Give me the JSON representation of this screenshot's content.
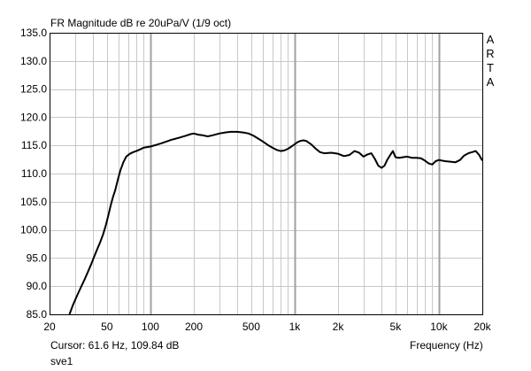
{
  "header": {
    "title": "FR Magnitude dB re 20uPa/V (1/9 oct)"
  },
  "brand": {
    "letters": [
      "A",
      "R",
      "T",
      "A"
    ]
  },
  "footer": {
    "cursor_readout": "Cursor: 61.6 Hz, 109.84 dB",
    "legend_label": "sve1"
  },
  "colors": {
    "background": "#ffffff",
    "grid": "#c8c8c8",
    "grid_major": "#a0a0a0",
    "trace": "#000000"
  },
  "chart_data": {
    "type": "line",
    "title": "FR Magnitude dB re 20uPa/V (1/9 oct)",
    "xlabel": "Frequency (Hz)",
    "ylabel": "",
    "x_scale": "log",
    "xlim": [
      20,
      20000
    ],
    "ylim": [
      85,
      135
    ],
    "grid": true,
    "x_ticks": [
      {
        "value": 20,
        "label": "20"
      },
      {
        "value": 50,
        "label": "50"
      },
      {
        "value": 100,
        "label": "100"
      },
      {
        "value": 200,
        "label": "200"
      },
      {
        "value": 500,
        "label": "500"
      },
      {
        "value": 1000,
        "label": "1k"
      },
      {
        "value": 2000,
        "label": "2k"
      },
      {
        "value": 5000,
        "label": "5k"
      },
      {
        "value": 10000,
        "label": "10k"
      },
      {
        "value": 20000,
        "label": "20k"
      }
    ],
    "y_ticks": [
      {
        "value": 135,
        "label": "135.0"
      },
      {
        "value": 130,
        "label": "130.0"
      },
      {
        "value": 125,
        "label": "125.0"
      },
      {
        "value": 120,
        "label": "120.0"
      },
      {
        "value": 115,
        "label": "115.0"
      },
      {
        "value": 110,
        "label": "110.0"
      },
      {
        "value": 105,
        "label": "105.0"
      },
      {
        "value": 100,
        "label": "100.0"
      },
      {
        "value": 95,
        "label": "95.0"
      },
      {
        "value": 90,
        "label": "90.0"
      },
      {
        "value": 85,
        "label": "85.0"
      }
    ],
    "series": [
      {
        "color": "#000000",
        "x": [
          27.5,
          29,
          31,
          33,
          35,
          37,
          39,
          41,
          43,
          45,
          47,
          49,
          51,
          53,
          55,
          57,
          60,
          62,
          65,
          68,
          72,
          76,
          80,
          85,
          90,
          95,
          100,
          110,
          120,
          130,
          140,
          150,
          160,
          175,
          190,
          200,
          215,
          230,
          250,
          270,
          300,
          330,
          360,
          400,
          440,
          480,
          520,
          560,
          600,
          650,
          700,
          750,
          800,
          850,
          900,
          950,
          1000,
          1050,
          1100,
          1150,
          1200,
          1300,
          1400,
          1500,
          1600,
          1800,
          2000,
          2200,
          2400,
          2600,
          2800,
          3000,
          3200,
          3400,
          3600,
          3800,
          4000,
          4200,
          4400,
          4600,
          4800,
          5000,
          5300,
          5600,
          6000,
          6500,
          7000,
          7500,
          8000,
          8500,
          9000,
          9500,
          10000,
          11000,
          12000,
          13000,
          14000,
          15000,
          16000,
          17000,
          18000,
          19000,
          20000
        ],
        "y": [
          85.0,
          86.6,
          88.3,
          89.8,
          91.2,
          92.6,
          94.0,
          95.4,
          96.7,
          97.9,
          99.2,
          100.7,
          102.5,
          104.3,
          105.8,
          107.0,
          109.3,
          110.6,
          112.0,
          113.0,
          113.5,
          113.8,
          114.0,
          114.3,
          114.6,
          114.7,
          114.8,
          115.1,
          115.4,
          115.7,
          116.0,
          116.2,
          116.4,
          116.7,
          117.0,
          117.1,
          116.9,
          116.8,
          116.6,
          116.8,
          117.1,
          117.3,
          117.4,
          117.4,
          117.3,
          117.1,
          116.7,
          116.2,
          115.7,
          115.1,
          114.6,
          114.2,
          114.0,
          114.1,
          114.4,
          114.8,
          115.2,
          115.6,
          115.8,
          115.9,
          115.8,
          115.2,
          114.4,
          113.8,
          113.6,
          113.7,
          113.5,
          113.1,
          113.3,
          114.0,
          113.7,
          113.0,
          113.4,
          113.6,
          112.6,
          111.4,
          111.0,
          111.4,
          112.5,
          113.3,
          114.0,
          112.9,
          112.8,
          112.9,
          113.0,
          112.8,
          112.8,
          112.7,
          112.3,
          111.8,
          111.6,
          112.2,
          112.4,
          112.2,
          112.1,
          112.0,
          112.4,
          113.2,
          113.6,
          113.8,
          114.0,
          113.3,
          112.3
        ]
      }
    ]
  }
}
